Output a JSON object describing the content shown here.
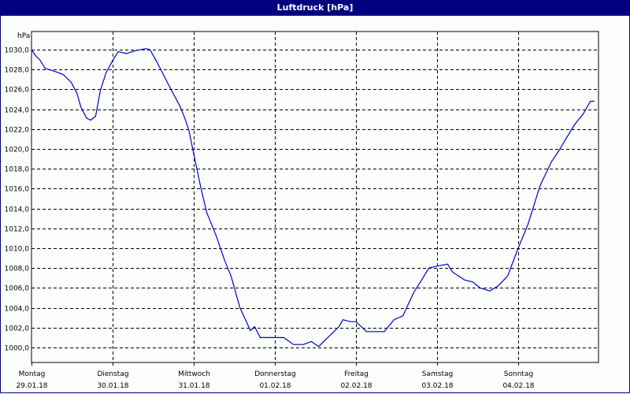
{
  "window": {
    "title": "Luftdruck [hPa]"
  },
  "chart_data": {
    "type": "line",
    "title": "Luftdruck [hPa]",
    "xlabel": "",
    "ylabel": "hPa",
    "ylim": [
      998.5,
      1031.8
    ],
    "grid": true,
    "legend": null,
    "y_ticks": [
      "1030,0",
      "1028,0",
      "1026,0",
      "1024,0",
      "1022,0",
      "1020,0",
      "1018,0",
      "1016,0",
      "1014,0",
      "1012,0",
      "1010,0",
      "1008,0",
      "1006,0",
      "1004,0",
      "1002,0",
      "1000,0"
    ],
    "x_ticks": [
      {
        "day": "Montag",
        "date": "29.01.18"
      },
      {
        "day": "Dienstag",
        "date": "30.01.18"
      },
      {
        "day": "Mittwoch",
        "date": "31.01.18"
      },
      {
        "day": "Donnerstag",
        "date": "01.02.18"
      },
      {
        "day": "Freitag",
        "date": "02.02.18"
      },
      {
        "day": "Samstag",
        "date": "03.02.18"
      },
      {
        "day": "Sonntag",
        "date": "04.02.18"
      }
    ],
    "series": [
      {
        "name": "Luftdruck",
        "color": "#0000c8",
        "x_days": [
          0.0,
          0.05,
          0.1,
          0.17,
          0.29,
          0.39,
          0.49,
          0.56,
          0.61,
          0.68,
          0.73,
          0.79,
          0.85,
          0.92,
          1.0,
          1.07,
          1.17,
          1.28,
          1.41,
          1.46,
          1.55,
          1.7,
          1.83,
          1.89,
          1.94,
          2.0,
          2.09,
          2.16,
          2.28,
          2.38,
          2.46,
          2.57,
          2.7,
          2.75,
          2.82,
          2.96,
          3.11,
          3.23,
          3.35,
          3.45,
          3.54,
          3.64,
          3.79,
          3.84,
          3.93,
          4.0,
          4.13,
          4.27,
          4.35,
          4.47,
          4.58,
          4.71,
          4.81,
          4.9,
          5.0,
          5.13,
          5.19,
          5.34,
          5.44,
          5.53,
          5.65,
          5.75,
          5.87,
          6.0,
          6.12,
          6.27,
          6.41,
          6.5,
          6.58,
          6.7,
          6.8,
          6.89,
          6.94
        ],
        "values": [
          1030.0,
          1029.4,
          1029.0,
          1028.1,
          1027.8,
          1027.5,
          1026.7,
          1025.6,
          1024.2,
          1023.1,
          1022.9,
          1023.3,
          1025.9,
          1027.7,
          1028.9,
          1029.8,
          1029.6,
          1029.9,
          1030.1,
          1030.0,
          1028.7,
          1026.3,
          1024.3,
          1023.1,
          1021.9,
          1019.5,
          1016.0,
          1013.6,
          1011.2,
          1008.8,
          1007.2,
          1004.0,
          1001.7,
          1002.1,
          1001.0,
          1001.0,
          1001.0,
          1000.3,
          1000.3,
          1000.6,
          1000.1,
          1000.9,
          1002.1,
          1002.8,
          1002.6,
          1002.6,
          1001.6,
          1001.6,
          1001.6,
          1002.8,
          1003.2,
          1005.5,
          1006.8,
          1008.0,
          1008.2,
          1008.4,
          1007.6,
          1006.8,
          1006.6,
          1006.0,
          1005.7,
          1006.2,
          1007.2,
          1010.0,
          1012.4,
          1016.3,
          1018.7,
          1019.8,
          1020.9,
          1022.5,
          1023.5,
          1024.8,
          1024.8
        ]
      }
    ]
  },
  "colors": {
    "titlebar": "#000080",
    "background": "#fcfffc",
    "line": "#0000c8",
    "grid": "#000000"
  }
}
